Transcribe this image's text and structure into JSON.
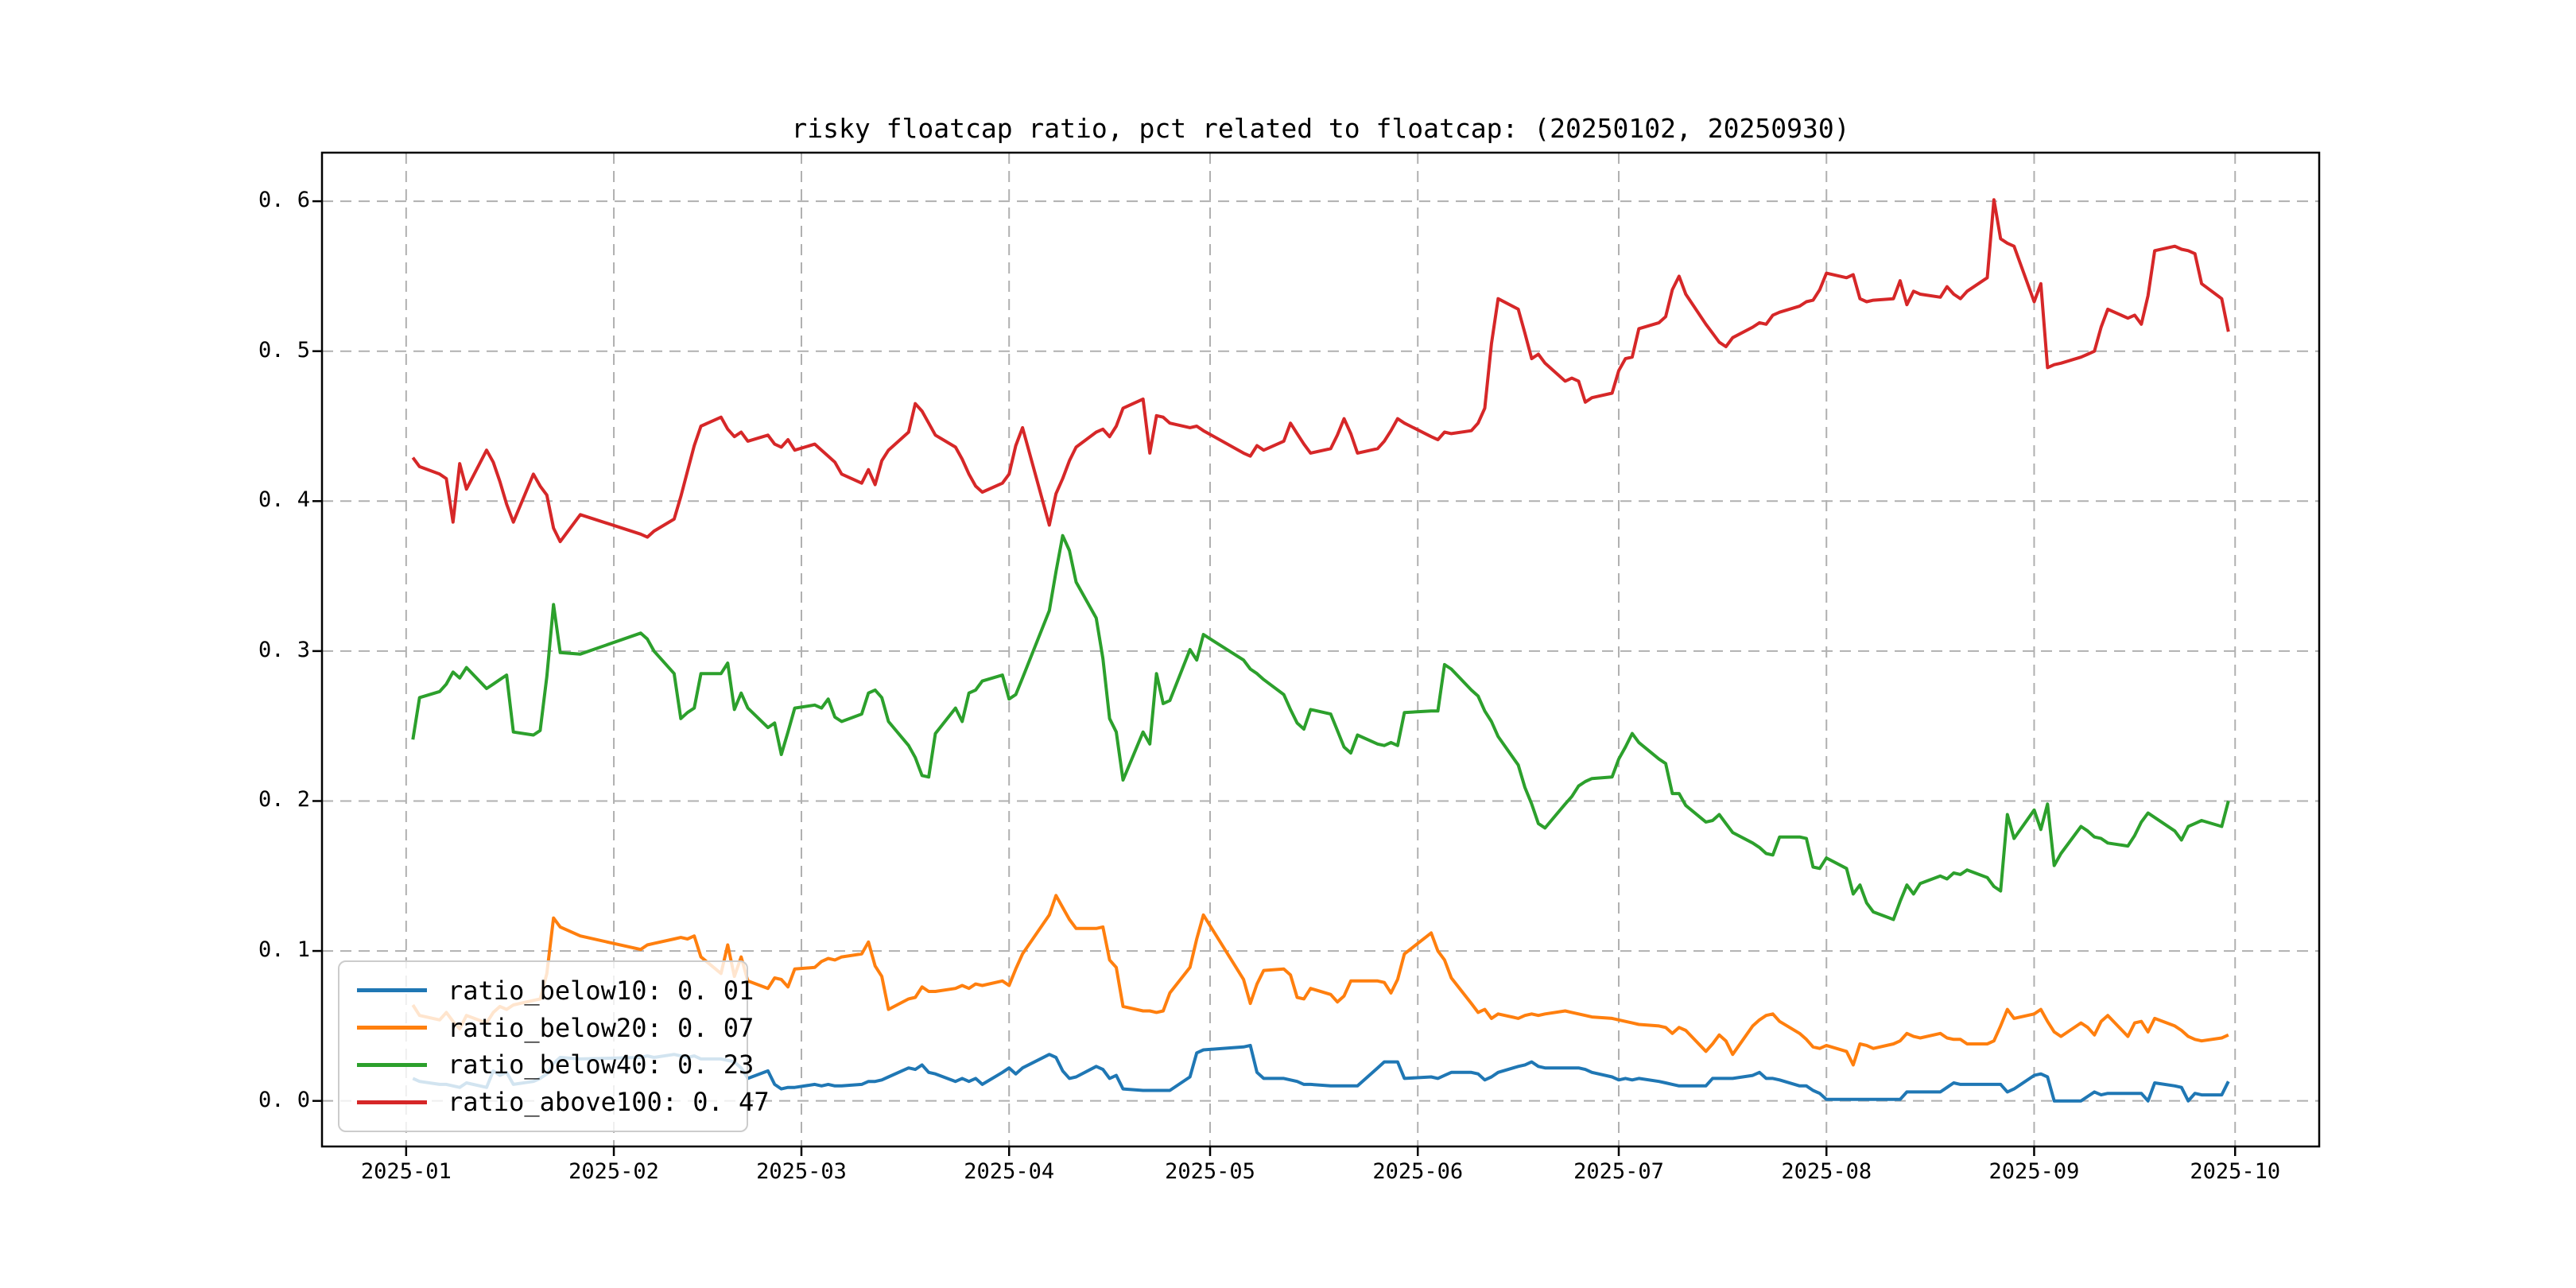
{
  "figure": {
    "title": "risky floatcap ratio, pct related to floatcap: (20250102, 20250930)",
    "background": "#ffffff"
  },
  "legend": {
    "position": "lower left",
    "entries": [
      {
        "name": "ratio_below10",
        "value": "0.01",
        "display": "ratio_below10: 0. 01",
        "color": "#1f77b4"
      },
      {
        "name": "ratio_below20",
        "value": "0.07",
        "display": "ratio_below20: 0. 07",
        "color": "#ff7f0e"
      },
      {
        "name": "ratio_below40",
        "value": "0.23",
        "display": "ratio_below40: 0. 23",
        "color": "#2ca02c"
      },
      {
        "name": "ratio_above100",
        "value": "0.47",
        "display": "ratio_above100: 0. 47",
        "color": "#d62728"
      }
    ]
  },
  "chart_data": {
    "type": "line",
    "title": "risky floatcap ratio, pct related to floatcap: (20250102, 20250930)",
    "date_range": [
      "20250102",
      "20250930"
    ],
    "grid": true,
    "grid_color": "#b0b0b0",
    "x_axis": {
      "unit": "days since 2025-01-01",
      "lim": [
        -12.56,
        285.55
      ],
      "ticks": [
        {
          "day": 0,
          "label": "2025-01"
        },
        {
          "day": 31,
          "label": "2025-02"
        },
        {
          "day": 59,
          "label": "2025-03"
        },
        {
          "day": 90,
          "label": "2025-04"
        },
        {
          "day": 120,
          "label": "2025-05"
        },
        {
          "day": 151,
          "label": "2025-06"
        },
        {
          "day": 181,
          "label": "2025-07"
        },
        {
          "day": 212,
          "label": "2025-08"
        },
        {
          "day": 243,
          "label": "2025-09"
        },
        {
          "day": 273,
          "label": "2025-10"
        }
      ]
    },
    "y_axis": {
      "lim": [
        -0.0304,
        0.6324
      ],
      "ticks": [
        {
          "value": 0.0,
          "label": "0. 0"
        },
        {
          "value": 0.1,
          "label": "0. 1"
        },
        {
          "value": 0.2,
          "label": "0. 2"
        },
        {
          "value": 0.3,
          "label": "0. 3"
        },
        {
          "value": 0.4,
          "label": "0. 4"
        },
        {
          "value": 0.5,
          "label": "0. 5"
        },
        {
          "value": 0.6,
          "label": "0. 6"
        }
      ]
    },
    "days": [
      1,
      2,
      5,
      6,
      7,
      8,
      9,
      12,
      13,
      14,
      15,
      16,
      19,
      20,
      21,
      22,
      23,
      26,
      35,
      36,
      37,
      40,
      41,
      42,
      43,
      44,
      47,
      48,
      49,
      50,
      51,
      54,
      55,
      56,
      57,
      58,
      61,
      62,
      63,
      64,
      65,
      68,
      69,
      70,
      71,
      72,
      75,
      76,
      77,
      78,
      79,
      82,
      83,
      84,
      85,
      86,
      89,
      90,
      91,
      92,
      96,
      97,
      98,
      99,
      100,
      103,
      104,
      105,
      106,
      107,
      110,
      111,
      112,
      113,
      114,
      117,
      118,
      119,
      125,
      126,
      127,
      128,
      131,
      132,
      133,
      134,
      135,
      138,
      139,
      140,
      141,
      142,
      145,
      146,
      147,
      148,
      149,
      153,
      154,
      155,
      156,
      159,
      160,
      161,
      162,
      163,
      166,
      167,
      168,
      169,
      170,
      173,
      174,
      175,
      176,
      177,
      180,
      181,
      182,
      183,
      184,
      187,
      188,
      189,
      190,
      191,
      194,
      195,
      196,
      197,
      198,
      201,
      202,
      203,
      204,
      205,
      208,
      209,
      210,
      211,
      212,
      215,
      216,
      217,
      218,
      219,
      222,
      223,
      224,
      225,
      226,
      229,
      230,
      231,
      232,
      233,
      236,
      237,
      238,
      239,
      240,
      243,
      244,
      245,
      246,
      247,
      250,
      251,
      252,
      253,
      254,
      257,
      258,
      259,
      260,
      261,
      264,
      265,
      266,
      267,
      268,
      271,
      272
    ],
    "series": [
      {
        "name": "ratio_below10",
        "color": "#1f77b4",
        "mean": 0.01,
        "values": [
          0.015,
          0.013,
          0.011,
          0.011,
          0.01,
          0.009,
          0.012,
          0.009,
          0.02,
          0.017,
          0.019,
          0.011,
          0.013,
          0.015,
          0.018,
          0.025,
          0.029,
          0.028,
          0.029,
          0.03,
          0.029,
          0.031,
          0.03,
          0.029,
          0.03,
          0.028,
          0.028,
          0.027,
          0.026,
          0.022,
          0.015,
          0.02,
          0.011,
          0.008,
          0.009,
          0.009,
          0.011,
          0.01,
          0.011,
          0.01,
          0.01,
          0.011,
          0.013,
          0.013,
          0.014,
          0.016,
          0.022,
          0.021,
          0.024,
          0.019,
          0.018,
          0.013,
          0.015,
          0.013,
          0.015,
          0.011,
          0.019,
          0.022,
          0.018,
          0.022,
          0.031,
          0.029,
          0.02,
          0.015,
          0.016,
          0.023,
          0.021,
          0.015,
          0.017,
          0.008,
          0.007,
          0.007,
          0.007,
          0.007,
          0.007,
          0.016,
          0.032,
          0.034,
          0.036,
          0.037,
          0.019,
          0.015,
          0.015,
          0.014,
          0.013,
          0.011,
          0.011,
          0.01,
          0.01,
          0.01,
          0.01,
          0.01,
          0.022,
          0.026,
          0.026,
          0.026,
          0.015,
          0.016,
          0.015,
          0.017,
          0.019,
          0.019,
          0.018,
          0.014,
          0.016,
          0.019,
          0.023,
          0.024,
          0.026,
          0.023,
          0.022,
          0.022,
          0.022,
          0.022,
          0.021,
          0.019,
          0.016,
          0.014,
          0.015,
          0.014,
          0.015,
          0.013,
          0.012,
          0.011,
          0.01,
          0.01,
          0.01,
          0.015,
          0.015,
          0.015,
          0.015,
          0.017,
          0.019,
          0.015,
          0.015,
          0.014,
          0.01,
          0.01,
          0.007,
          0.005,
          0.001,
          0.001,
          0.001,
          0.001,
          0.001,
          0.001,
          0.001,
          0.001,
          0.006,
          0.006,
          0.006,
          0.006,
          0.009,
          0.012,
          0.011,
          0.011,
          0.011,
          0.011,
          0.011,
          0.006,
          0.008,
          0.017,
          0.018,
          0.016,
          0.0,
          0.0,
          0.0,
          0.003,
          0.006,
          0.004,
          0.005,
          0.005,
          0.005,
          0.005,
          0.0,
          0.012,
          0.01,
          0.009,
          0.0,
          0.005,
          0.004,
          0.004,
          0.013
        ]
      },
      {
        "name": "ratio_below20",
        "color": "#ff7f0e",
        "mean": 0.07,
        "values": [
          0.064,
          0.057,
          0.054,
          0.059,
          0.053,
          0.048,
          0.057,
          0.052,
          0.059,
          0.063,
          0.061,
          0.064,
          0.067,
          0.068,
          0.085,
          0.122,
          0.116,
          0.11,
          0.101,
          0.104,
          0.105,
          0.108,
          0.109,
          0.108,
          0.11,
          0.096,
          0.085,
          0.104,
          0.083,
          0.096,
          0.08,
          0.075,
          0.082,
          0.081,
          0.076,
          0.088,
          0.089,
          0.093,
          0.095,
          0.094,
          0.096,
          0.098,
          0.106,
          0.09,
          0.083,
          0.061,
          0.068,
          0.069,
          0.076,
          0.073,
          0.073,
          0.075,
          0.077,
          0.075,
          0.078,
          0.077,
          0.08,
          0.077,
          0.088,
          0.098,
          0.124,
          0.137,
          0.129,
          0.121,
          0.115,
          0.115,
          0.116,
          0.094,
          0.089,
          0.063,
          0.06,
          0.06,
          0.059,
          0.06,
          0.072,
          0.089,
          0.108,
          0.124,
          0.081,
          0.065,
          0.078,
          0.087,
          0.088,
          0.084,
          0.069,
          0.068,
          0.075,
          0.071,
          0.066,
          0.07,
          0.08,
          0.08,
          0.08,
          0.079,
          0.072,
          0.081,
          0.098,
          0.112,
          0.1,
          0.094,
          0.082,
          0.065,
          0.059,
          0.061,
          0.055,
          0.058,
          0.055,
          0.057,
          0.058,
          0.057,
          0.058,
          0.06,
          0.059,
          0.058,
          0.057,
          0.056,
          0.055,
          0.054,
          0.053,
          0.052,
          0.051,
          0.05,
          0.049,
          0.045,
          0.049,
          0.047,
          0.033,
          0.038,
          0.044,
          0.04,
          0.031,
          0.05,
          0.054,
          0.057,
          0.058,
          0.053,
          0.045,
          0.041,
          0.036,
          0.035,
          0.037,
          0.033,
          0.024,
          0.038,
          0.037,
          0.035,
          0.038,
          0.04,
          0.045,
          0.043,
          0.042,
          0.045,
          0.042,
          0.041,
          0.041,
          0.038,
          0.038,
          0.04,
          0.05,
          0.061,
          0.055,
          0.058,
          0.061,
          0.053,
          0.046,
          0.043,
          0.052,
          0.049,
          0.044,
          0.053,
          0.057,
          0.043,
          0.052,
          0.053,
          0.046,
          0.055,
          0.05,
          0.047,
          0.043,
          0.041,
          0.04,
          0.042,
          0.044
        ]
      },
      {
        "name": "ratio_below40",
        "color": "#2ca02c",
        "mean": 0.23,
        "values": [
          0.241,
          0.269,
          0.273,
          0.278,
          0.286,
          0.282,
          0.289,
          0.275,
          0.278,
          0.281,
          0.284,
          0.246,
          0.244,
          0.247,
          0.283,
          0.331,
          0.299,
          0.298,
          0.312,
          0.308,
          0.3,
          0.285,
          0.255,
          0.259,
          0.262,
          0.285,
          0.285,
          0.292,
          0.261,
          0.272,
          0.262,
          0.249,
          0.252,
          0.231,
          0.246,
          0.262,
          0.264,
          0.262,
          0.268,
          0.256,
          0.253,
          0.258,
          0.272,
          0.274,
          0.269,
          0.253,
          0.237,
          0.229,
          0.217,
          0.216,
          0.245,
          0.262,
          0.253,
          0.272,
          0.274,
          0.28,
          0.284,
          0.268,
          0.271,
          0.282,
          0.327,
          0.353,
          0.377,
          0.367,
          0.346,
          0.322,
          0.295,
          0.255,
          0.246,
          0.214,
          0.246,
          0.238,
          0.285,
          0.265,
          0.267,
          0.301,
          0.294,
          0.311,
          0.294,
          0.288,
          0.285,
          0.281,
          0.271,
          0.261,
          0.252,
          0.248,
          0.261,
          0.258,
          0.247,
          0.236,
          0.232,
          0.244,
          0.238,
          0.237,
          0.239,
          0.237,
          0.259,
          0.26,
          0.26,
          0.291,
          0.288,
          0.274,
          0.27,
          0.26,
          0.253,
          0.243,
          0.224,
          0.209,
          0.198,
          0.185,
          0.182,
          0.198,
          0.203,
          0.21,
          0.213,
          0.215,
          0.216,
          0.228,
          0.236,
          0.245,
          0.239,
          0.228,
          0.225,
          0.205,
          0.205,
          0.197,
          0.186,
          0.187,
          0.191,
          0.185,
          0.179,
          0.172,
          0.169,
          0.165,
          0.164,
          0.176,
          0.176,
          0.175,
          0.156,
          0.155,
          0.162,
          0.155,
          0.138,
          0.144,
          0.132,
          0.126,
          0.121,
          0.133,
          0.144,
          0.138,
          0.145,
          0.15,
          0.148,
          0.152,
          0.151,
          0.154,
          0.149,
          0.143,
          0.14,
          0.191,
          0.175,
          0.194,
          0.181,
          0.198,
          0.157,
          0.165,
          0.183,
          0.18,
          0.176,
          0.175,
          0.172,
          0.17,
          0.177,
          0.186,
          0.192,
          0.189,
          0.18,
          0.174,
          0.183,
          0.185,
          0.187,
          0.183,
          0.2
        ]
      },
      {
        "name": "ratio_above100",
        "color": "#d62728",
        "mean": 0.47,
        "values": [
          0.429,
          0.423,
          0.418,
          0.415,
          0.386,
          0.425,
          0.408,
          0.434,
          0.426,
          0.413,
          0.398,
          0.386,
          0.418,
          0.41,
          0.404,
          0.382,
          0.373,
          0.391,
          0.378,
          0.376,
          0.38,
          0.388,
          0.403,
          0.42,
          0.437,
          0.45,
          0.456,
          0.448,
          0.443,
          0.446,
          0.44,
          0.444,
          0.438,
          0.436,
          0.441,
          0.434,
          0.438,
          0.434,
          0.43,
          0.426,
          0.418,
          0.412,
          0.421,
          0.411,
          0.427,
          0.434,
          0.446,
          0.465,
          0.46,
          0.452,
          0.444,
          0.436,
          0.428,
          0.418,
          0.41,
          0.406,
          0.412,
          0.418,
          0.437,
          0.449,
          0.384,
          0.405,
          0.415,
          0.427,
          0.436,
          0.446,
          0.448,
          0.443,
          0.45,
          0.462,
          0.468,
          0.432,
          0.457,
          0.456,
          0.452,
          0.449,
          0.45,
          0.447,
          0.432,
          0.43,
          0.437,
          0.434,
          0.44,
          0.452,
          0.445,
          0.438,
          0.432,
          0.435,
          0.444,
          0.455,
          0.445,
          0.432,
          0.435,
          0.44,
          0.447,
          0.455,
          0.452,
          0.443,
          0.441,
          0.446,
          0.445,
          0.447,
          0.452,
          0.462,
          0.505,
          0.535,
          0.528,
          0.512,
          0.495,
          0.498,
          0.492,
          0.48,
          0.482,
          0.48,
          0.466,
          0.469,
          0.472,
          0.487,
          0.495,
          0.496,
          0.515,
          0.519,
          0.523,
          0.541,
          0.55,
          0.538,
          0.518,
          0.512,
          0.506,
          0.503,
          0.509,
          0.516,
          0.519,
          0.518,
          0.524,
          0.526,
          0.53,
          0.533,
          0.534,
          0.541,
          0.552,
          0.549,
          0.551,
          0.535,
          0.533,
          0.534,
          0.535,
          0.547,
          0.531,
          0.54,
          0.538,
          0.536,
          0.543,
          0.538,
          0.535,
          0.54,
          0.549,
          0.601,
          0.575,
          0.572,
          0.57,
          0.533,
          0.545,
          0.489,
          0.491,
          0.492,
          0.496,
          0.498,
          0.5,
          0.516,
          0.528,
          0.522,
          0.524,
          0.518,
          0.537,
          0.567,
          0.57,
          0.568,
          0.567,
          0.565,
          0.545,
          0.535,
          0.513
        ]
      }
    ]
  }
}
